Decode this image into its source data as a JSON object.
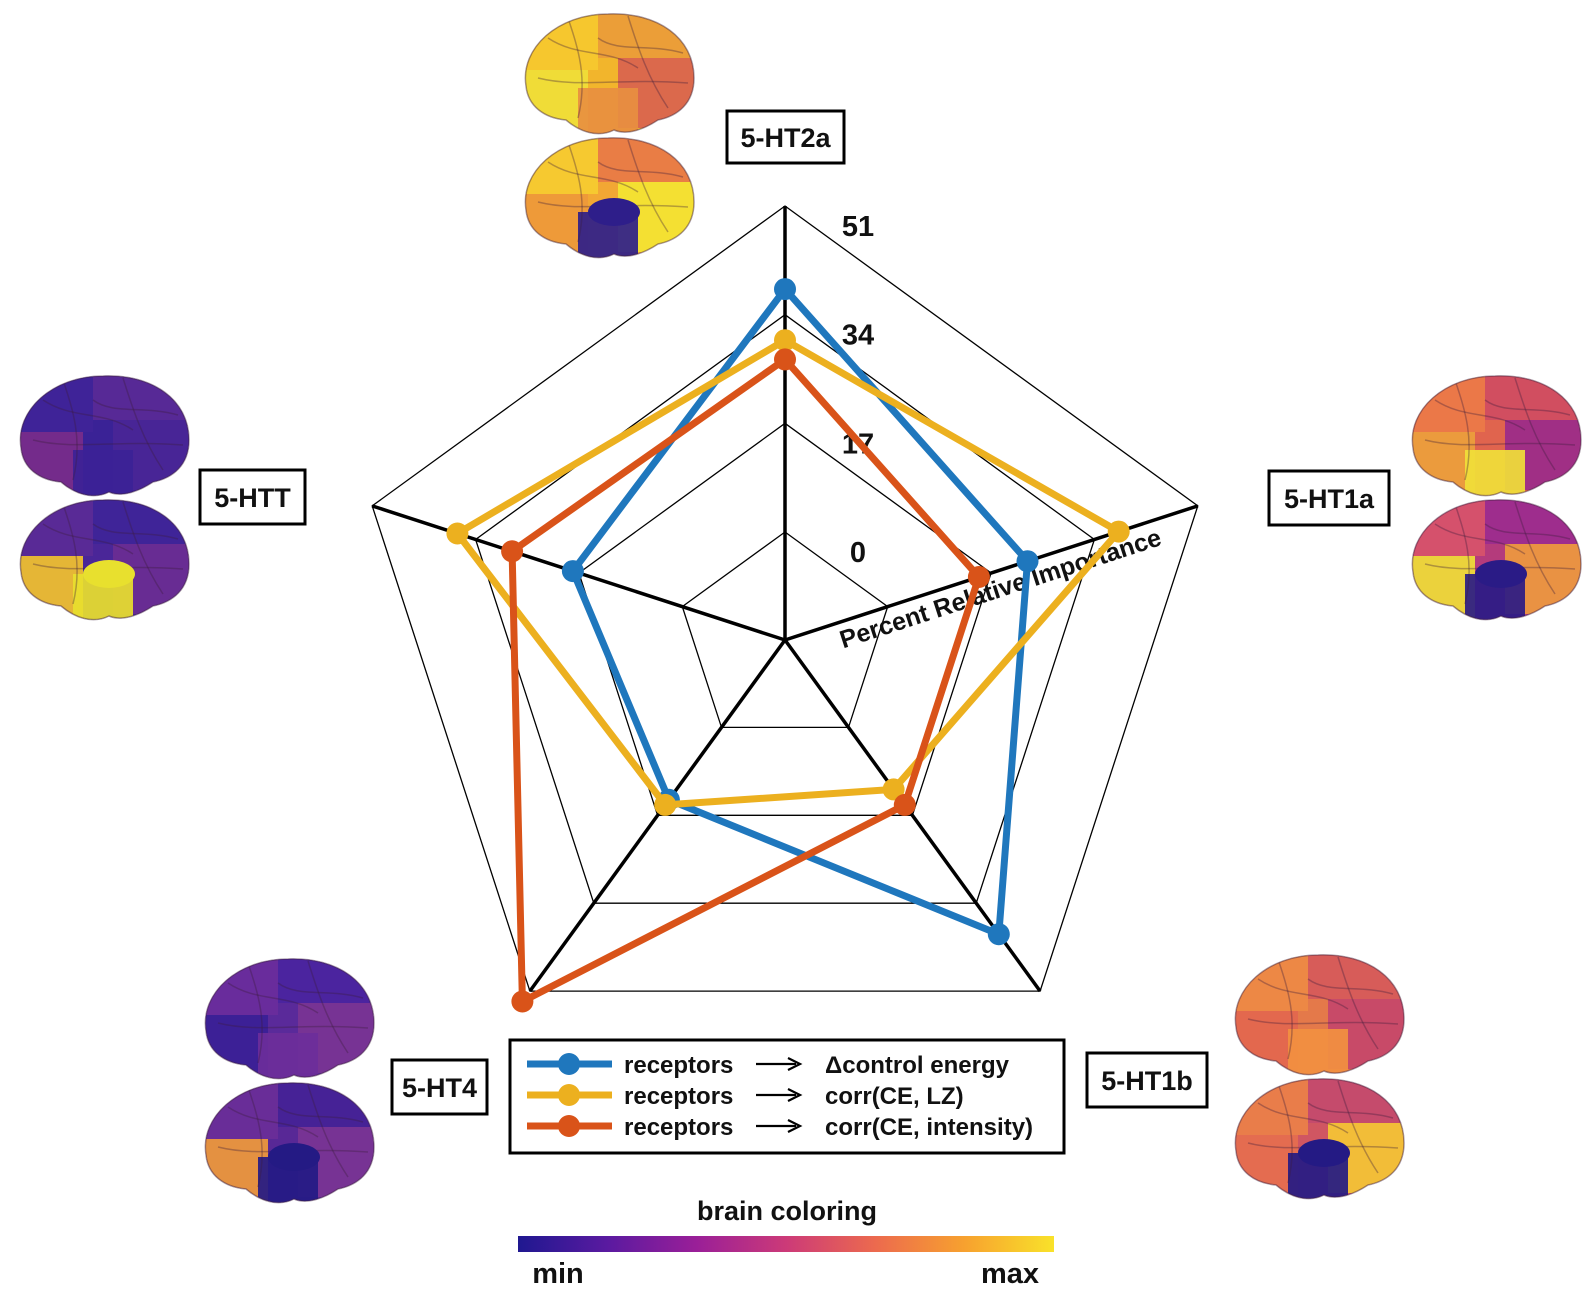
{
  "chart_data": {
    "type": "radar",
    "axes": [
      "5-HT2a",
      "5-HT1a",
      "5-HT1b",
      "5-HT4",
      "5-HTT"
    ],
    "axis_tick_labels": [
      "0",
      "17",
      "34",
      "51"
    ],
    "range": [
      0,
      51
    ],
    "radial_label": "Percent Relative Importance",
    "grid_rings": 4,
    "series": [
      {
        "name": "receptors ⟶ Δcontrol energy",
        "name_left": "receptors",
        "name_right": "Δcontrol energy",
        "color": "#1f77bd",
        "values": [
          38,
          23,
          40,
          14,
          18
        ]
      },
      {
        "name": "receptors ⟶ corr(CE, LZ)",
        "name_left": "receptors",
        "name_right": "corr(CE, LZ)",
        "color": "#ecb01f",
        "values": [
          30,
          38,
          12,
          15,
          37
        ]
      },
      {
        "name": "receptors ⟶ corr(CE, intensity)",
        "name_left": "receptors",
        "name_right": "corr(CE, intensity)",
        "color": "#d95319",
        "values": [
          27,
          15,
          15,
          53,
          28
        ]
      }
    ],
    "legend_position": "bottom-center",
    "colorbar": {
      "title": "brain coloring",
      "min_label": "min",
      "max_label": "max",
      "colors": [
        "#1f1890",
        "#5a1aa0",
        "#9a1f98",
        "#cc3a78",
        "#ec6a4e",
        "#f7a12f",
        "#f9e22a"
      ]
    },
    "brain_maps": {
      "5-HT2a": {
        "lateral": [
          "#f2b52c",
          "#f6c92f",
          "#ea9c3a",
          "#d9634f",
          "#f0df38",
          "#e88f40"
        ],
        "medial": [
          "#f2a734",
          "#f6cc30",
          "#e87a46",
          "#f4e532",
          "#ee9939",
          "#2e1e8a"
        ]
      },
      "5-HT1a": {
        "lateral": [
          "#e0644e",
          "#ec7a48",
          "#cf4c62",
          "#9a2a8a",
          "#eca03c",
          "#f0df38"
        ],
        "medial": [
          "#b43b7c",
          "#d8546a",
          "#9c2c8e",
          "#ee9a3e",
          "#f0e036",
          "#2a1b86"
        ]
      },
      "5-HT1b": {
        "lateral": [
          "#e4794a",
          "#ee8a44",
          "#d65a5a",
          "#c5466a",
          "#e3674e",
          "#f29040"
        ],
        "medial": [
          "#d05662",
          "#ea8048",
          "#c34a6c",
          "#f4c634",
          "#e56e4e",
          "#241a84"
        ]
      },
      "5-HT4": {
        "lateral": [
          "#5a2a9a",
          "#6a2c9c",
          "#4a24a0",
          "#7a3494",
          "#3a2096",
          "#6c2e9a"
        ],
        "medial": [
          "#582896",
          "#6a2e98",
          "#442296",
          "#7a3494",
          "#f09a3a",
          "#241a84"
        ]
      },
      "5-HTT": {
        "lateral": [
          "#3a2296",
          "#402498",
          "#5a2a96",
          "#4a2696",
          "#7a2c8a",
          "#3c2296"
        ],
        "medial": [
          "#4a2698",
          "#5a2a96",
          "#3e2498",
          "#6a2c92",
          "#f2c22e",
          "#e8e02e"
        ]
      }
    }
  }
}
